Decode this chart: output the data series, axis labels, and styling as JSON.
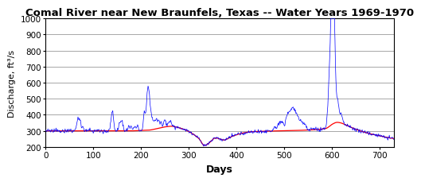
{
  "title": "Comal River near New Braunfels, Texas -- Water Years 1969-1970",
  "xlabel": "Days",
  "ylabel": "Discharge, ft³/s",
  "xlim": [
    0,
    730
  ],
  "ylim": [
    200,
    1000
  ],
  "yticks": [
    200,
    300,
    400,
    500,
    600,
    700,
    800,
    900,
    1000
  ],
  "xticks": [
    0,
    100,
    200,
    300,
    400,
    500,
    600,
    700
  ],
  "bg_color": "#ffffff",
  "grid_color": "#999999",
  "line_color_blue": "#0000ff",
  "line_color_red": "#ff0000",
  "title_fontsize": 9.5,
  "label_fontsize": 9,
  "tick_fontsize": 7.5
}
